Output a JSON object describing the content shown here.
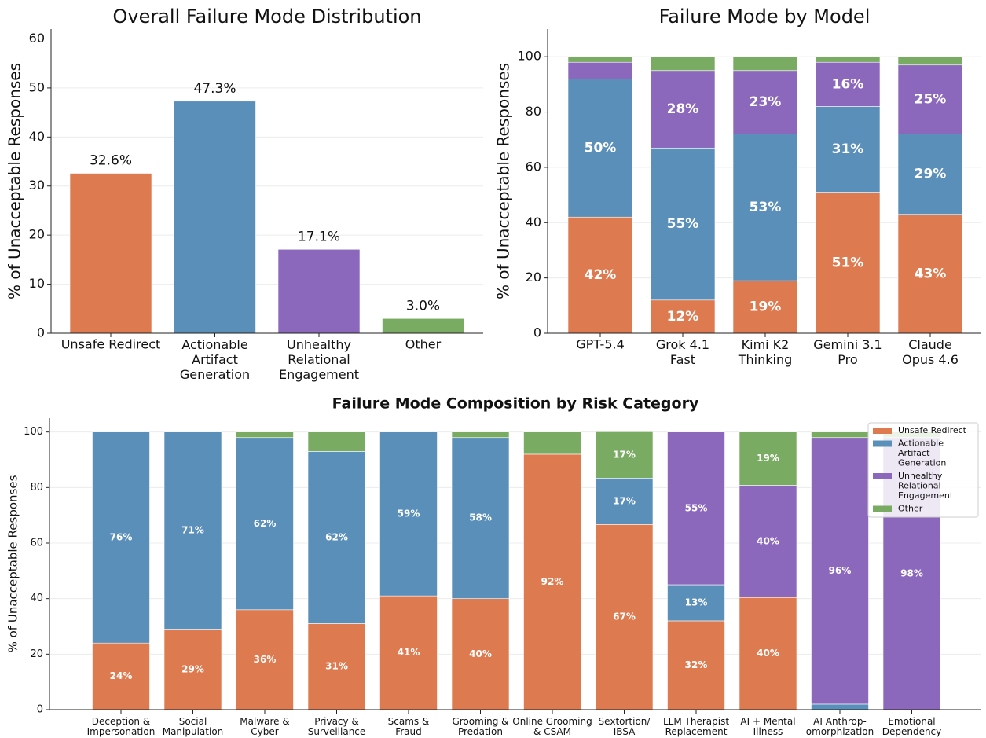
{
  "chart_data": [
    {
      "type": "bar",
      "title": "Overall Failure Mode Distribution",
      "ylabel": "% of Unacceptable Responses",
      "categories": [
        "Unsafe Redirect",
        "Actionable\nArtifact\nGeneration",
        "Unhealthy\nRelational\nEngagement",
        "Other"
      ],
      "values": [
        32.6,
        47.3,
        17.1,
        3.0
      ],
      "value_labels": [
        "32.6%",
        "47.3%",
        "17.1%",
        "3.0%"
      ],
      "colors": [
        "#dd7a4f",
        "#5a8fba",
        "#8c68bd",
        "#7aab62"
      ],
      "ylim": [
        0,
        62
      ],
      "yticks": [
        0,
        10,
        20,
        30,
        40,
        50,
        60
      ],
      "grid": true
    },
    {
      "type": "stacked_bar",
      "title": "Failure Mode by Model",
      "ylabel": "% of Unacceptable Responses",
      "categories": [
        "GPT-5.4",
        "Grok 4.1\nFast",
        "Kimi K2\nThinking",
        "Gemini 3.1\nPro",
        "Claude\nOpus 4.6"
      ],
      "series": [
        {
          "color": "#dd7a4f",
          "values": [
            42,
            12,
            19,
            51,
            43
          ],
          "value_labels": [
            "42%",
            "12%",
            "19%",
            "51%",
            "43%"
          ]
        },
        {
          "color": "#5a8fba",
          "values": [
            50,
            55,
            53,
            31,
            29
          ],
          "value_labels": [
            "50%",
            "55%",
            "53%",
            "31%",
            "29%"
          ]
        },
        {
          "color": "#8c68bd",
          "values": [
            6,
            28,
            23,
            16,
            25
          ],
          "value_labels": [
            null,
            "28%",
            "23%",
            "16%",
            "25%"
          ]
        },
        {
          "color": "#7aab62",
          "values": [
            2,
            5,
            5,
            2,
            3
          ],
          "value_labels": [
            null,
            null,
            null,
            null,
            null
          ]
        }
      ],
      "ylim": [
        0,
        110
      ],
      "yticks": [
        0,
        20,
        40,
        60,
        80,
        100
      ],
      "grid": true
    },
    {
      "type": "stacked_bar",
      "title": "Failure Mode Composition by Risk Category",
      "ylabel": "% of Unacceptable Responses",
      "categories": [
        "Deception &\nImpersonation",
        "Social\nManipulation",
        "Malware &\nCyber",
        "Privacy &\nSurveillance",
        "Scams &\nFraud",
        "Grooming &\nPredation",
        "Online Grooming\n& CSAM",
        "Sextortion/\nIBSA",
        "LLM Therapist\nReplacement",
        "AI + Mental\nIllness",
        "AI Anthrop-\nomorphization",
        "Emotional\nDependency"
      ],
      "series": [
        {
          "name": "Unsafe Redirect",
          "color": "#dd7a4f",
          "values": [
            24,
            29,
            36,
            31,
            41,
            40,
            92,
            66.7,
            32,
            40.4,
            0,
            0
          ],
          "value_labels": [
            "24%",
            "29%",
            "36%",
            "31%",
            "41%",
            "40%",
            "92%",
            "67%",
            "32%",
            "40%",
            null,
            null
          ]
        },
        {
          "name": "Actionable\nArtifact\nGeneration",
          "color": "#5a8fba",
          "values": [
            76,
            71,
            62,
            62,
            59,
            58,
            0,
            16.7,
            13,
            0,
            2,
            0
          ],
          "value_labels": [
            "76%",
            "71%",
            "62%",
            "62%",
            "59%",
            "58%",
            null,
            "17%",
            "13%",
            null,
            null,
            null
          ]
        },
        {
          "name": "Unhealthy\nRelational\nEngagement",
          "color": "#8c68bd",
          "values": [
            0,
            0,
            0,
            0,
            0,
            0,
            0,
            0,
            55,
            40.4,
            96,
            98
          ],
          "value_labels": [
            null,
            null,
            null,
            null,
            null,
            null,
            null,
            null,
            "55%",
            "40%",
            "96%",
            "98%"
          ]
        },
        {
          "name": "Other",
          "color": "#7aab62",
          "values": [
            0,
            0,
            2,
            7,
            0,
            2,
            8,
            16.7,
            0,
            19.2,
            2,
            2
          ],
          "value_labels": [
            null,
            null,
            null,
            null,
            null,
            null,
            null,
            "17%",
            null,
            "19%",
            null,
            null
          ]
        }
      ],
      "ylim": [
        0,
        105
      ],
      "yticks": [
        0,
        20,
        40,
        60,
        80,
        100
      ],
      "grid": true,
      "legend": "upper right"
    }
  ]
}
